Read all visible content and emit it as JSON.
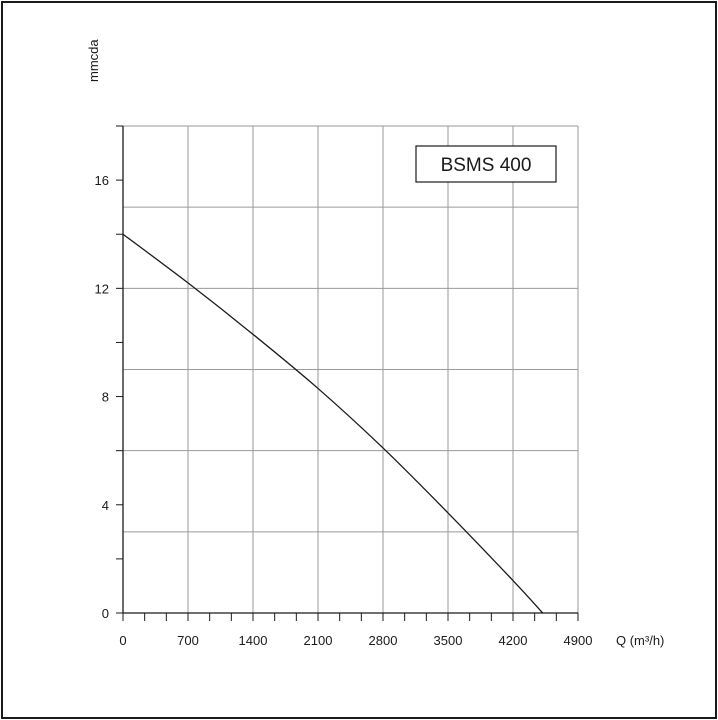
{
  "chart_data": {
    "type": "line",
    "model_label": "BSMS 400",
    "ylabel": "mmcda",
    "xlabel": "Q (m³/h)",
    "xlim": [
      0,
      4900
    ],
    "ylim": [
      0,
      18
    ],
    "x_ticks": [
      0,
      700,
      1400,
      2100,
      2800,
      3500,
      4200,
      4900
    ],
    "x_tick_labels": [
      "0",
      "700",
      "1400",
      "2100",
      "2800",
      "3500",
      "4200",
      "4900"
    ],
    "y_ticks": [
      0,
      4,
      8,
      12,
      16
    ],
    "y_tick_labels": [
      "0",
      "4",
      "8",
      "12",
      "16"
    ],
    "grid": true,
    "series": [
      {
        "x": [
          0,
          700,
          1400,
          2100,
          2800,
          3500,
          4200,
          4520
        ],
        "y": [
          14.0,
          12.2,
          10.3,
          8.3,
          6.1,
          3.7,
          1.2,
          0
        ]
      }
    ]
  }
}
